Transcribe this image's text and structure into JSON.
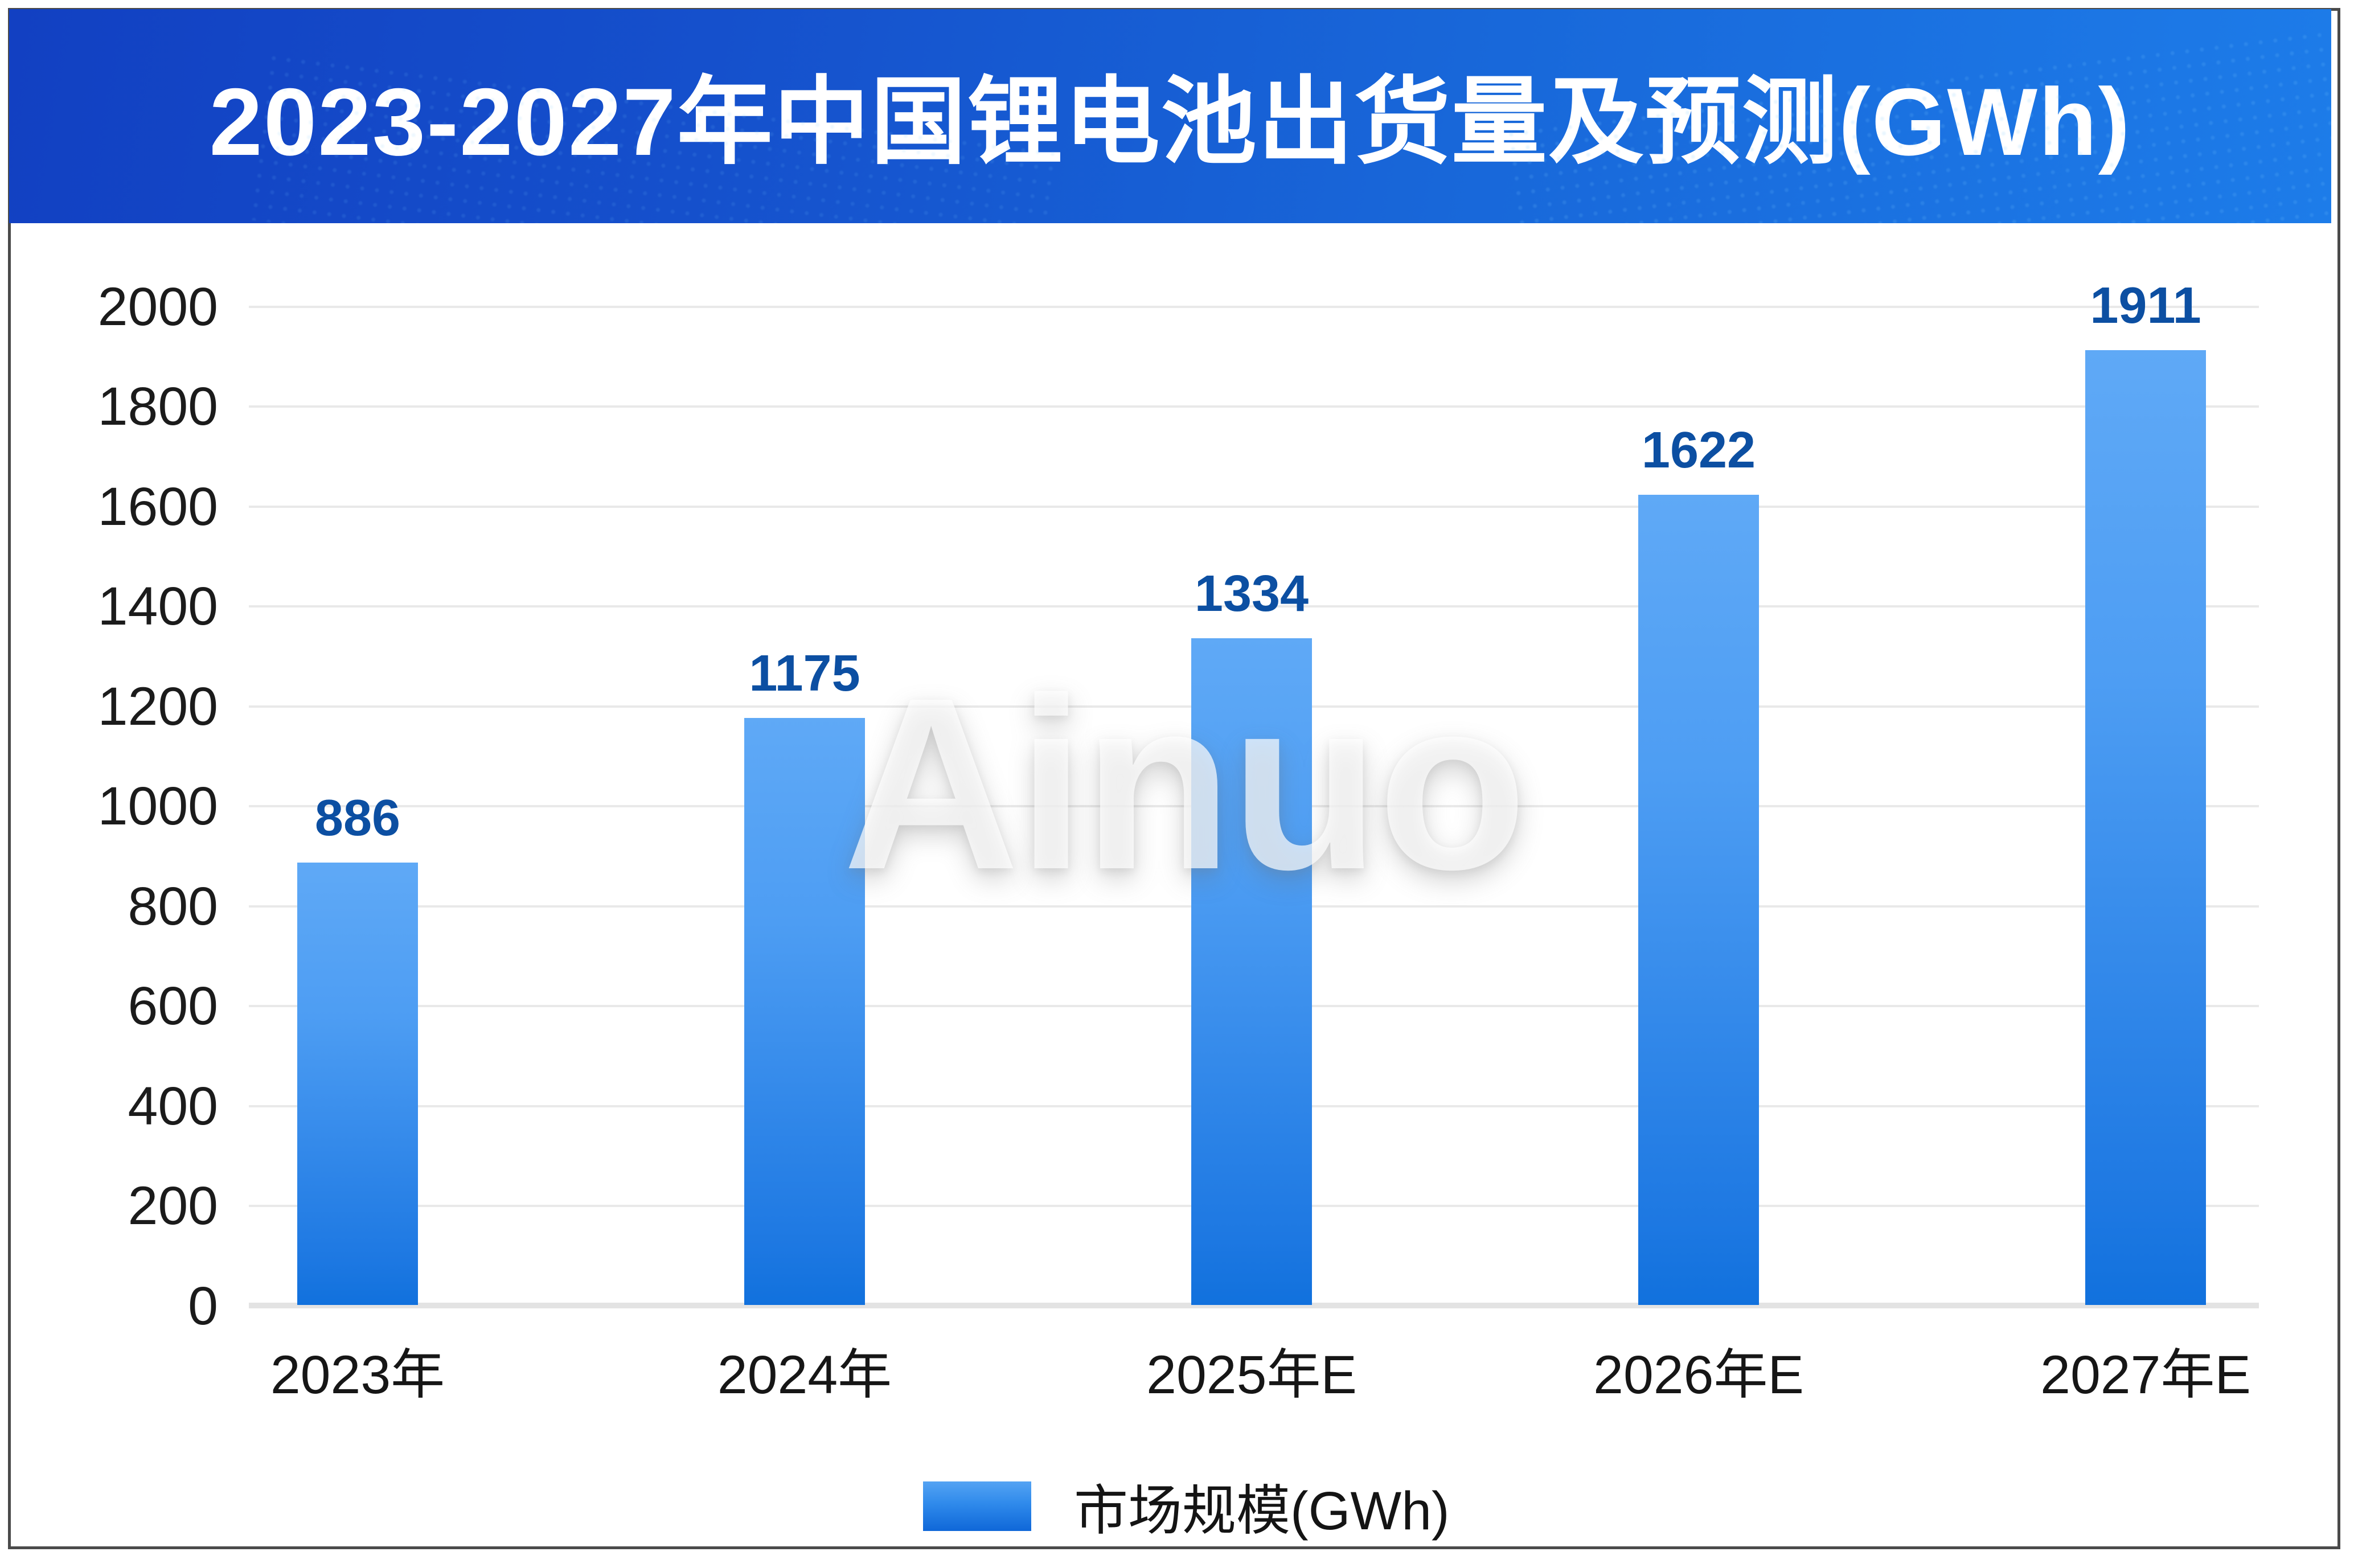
{
  "header": {
    "title": "2023-2027年中国锂电池出货量及预测(GWh)"
  },
  "watermark": {
    "text": "Ainuo"
  },
  "legend": {
    "label": "市场规模(GWh)"
  },
  "chart_data": {
    "type": "bar",
    "title": "2023-2027年中国锂电池出货量及预测(GWh)",
    "categories": [
      "2023年",
      "2024年",
      "2025年E",
      "2026年E",
      "2027年E"
    ],
    "series": [
      {
        "name": "市场规模(GWh)",
        "values": [
          886,
          1175,
          1334,
          1622,
          1911
        ]
      }
    ],
    "values": [
      886,
      1175,
      1334,
      1622,
      1911
    ],
    "xlabel": "",
    "ylabel": "",
    "ylim": [
      0,
      2000
    ],
    "ytick_step": 200,
    "yticks": [
      "0",
      "200",
      "400",
      "600",
      "800",
      "1000",
      "1200",
      "1400",
      "1600",
      "1800",
      "2000"
    ],
    "grid": true,
    "legend_position": "bottom",
    "colors": {
      "banner_gradient_left": "#1240c2",
      "banner_gradient_right": "#1d7ce9",
      "bar_gradient_top": "#5fa9f6",
      "bar_gradient_bottom": "#1171dd",
      "data_label": "#0c4fa2",
      "axis_text": "#1b1b1b",
      "gridline": "#e9e9e9",
      "frame_border": "#4a4a4a",
      "title_text": "#ffffff"
    }
  }
}
